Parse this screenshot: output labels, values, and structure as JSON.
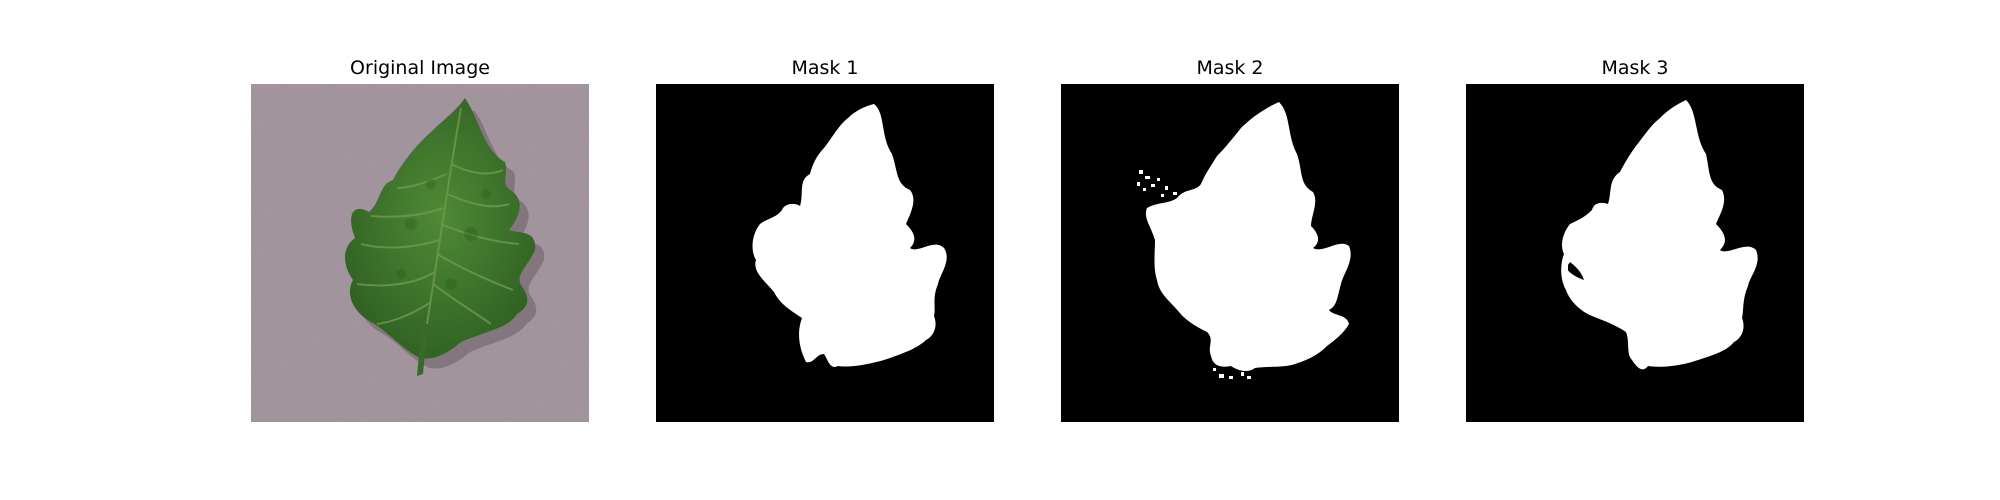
{
  "figure": {
    "panels": [
      {
        "title": "Original Image",
        "content": "leaf-photo",
        "background": "#a99aa3",
        "leaf_color": "#3f7a2c",
        "vein_color": "#6f9a4e"
      },
      {
        "title": "Mask 1",
        "content": "segmentation-mask",
        "background": "#000000",
        "mask_color": "#ffffff"
      },
      {
        "title": "Mask 2",
        "content": "segmentation-mask",
        "background": "#000000",
        "mask_color": "#ffffff"
      },
      {
        "title": "Mask 3",
        "content": "segmentation-mask",
        "background": "#000000",
        "mask_color": "#ffffff"
      }
    ]
  }
}
